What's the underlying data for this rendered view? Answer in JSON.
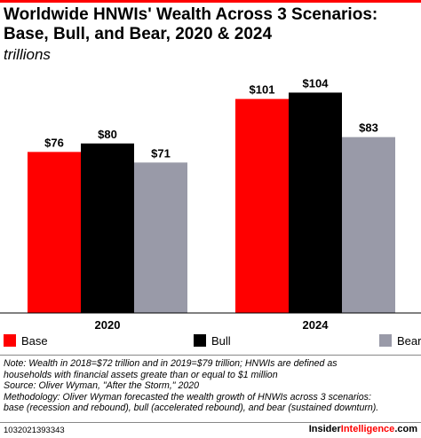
{
  "colors": {
    "base": "#ff0000",
    "bull": "#000000",
    "bear": "#999aa8",
    "accent": "#ff0000"
  },
  "header": {
    "title": "Worldwide HNWIs' Wealth Across 3 Scenarios: Base, Bull, and Bear, 2020 & 2024",
    "subtitle": "trillions"
  },
  "chart_data": {
    "type": "bar",
    "title": "Worldwide HNWIs' Wealth Across 3 Scenarios: Base, Bull, and Bear, 2020 & 2024",
    "subtitle": "trillions",
    "categories": [
      "2020",
      "2024"
    ],
    "series": [
      {
        "name": "Base",
        "values": [
          76,
          101
        ],
        "labels": [
          "$76",
          "$101"
        ]
      },
      {
        "name": "Bull",
        "values": [
          80,
          104
        ],
        "labels": [
          "$80",
          "$104"
        ]
      },
      {
        "name": "Bear",
        "values": [
          71,
          83
        ],
        "labels": [
          "$71",
          "$83"
        ]
      }
    ],
    "ylim": [
      0,
      130
    ],
    "grid": false,
    "legend_position": "bottom"
  },
  "legend": {
    "items": [
      "Base",
      "Bull",
      "Bear"
    ]
  },
  "notes": {
    "line1": "Note: Wealth in 2018=$72 trillion and in 2019=$79 trillion; HNWIs are defined as",
    "line2": "households with financial assets greate than or equal to $1 million",
    "line3": "Source: Oliver Wyman, \"After the Storm,\" 2020",
    "line4": "Methodology: Oliver Wyman forecasted the wealth growth of HNWIs across 3 scenarios:",
    "line5": "base (recession and rebound), bull (accelerated rebound), and bear (sustained downturn)."
  },
  "footer": {
    "id": "1032021393343",
    "brand_main": "Insider",
    "brand_accent": "Intelligence",
    "brand_suffix": ".com"
  }
}
